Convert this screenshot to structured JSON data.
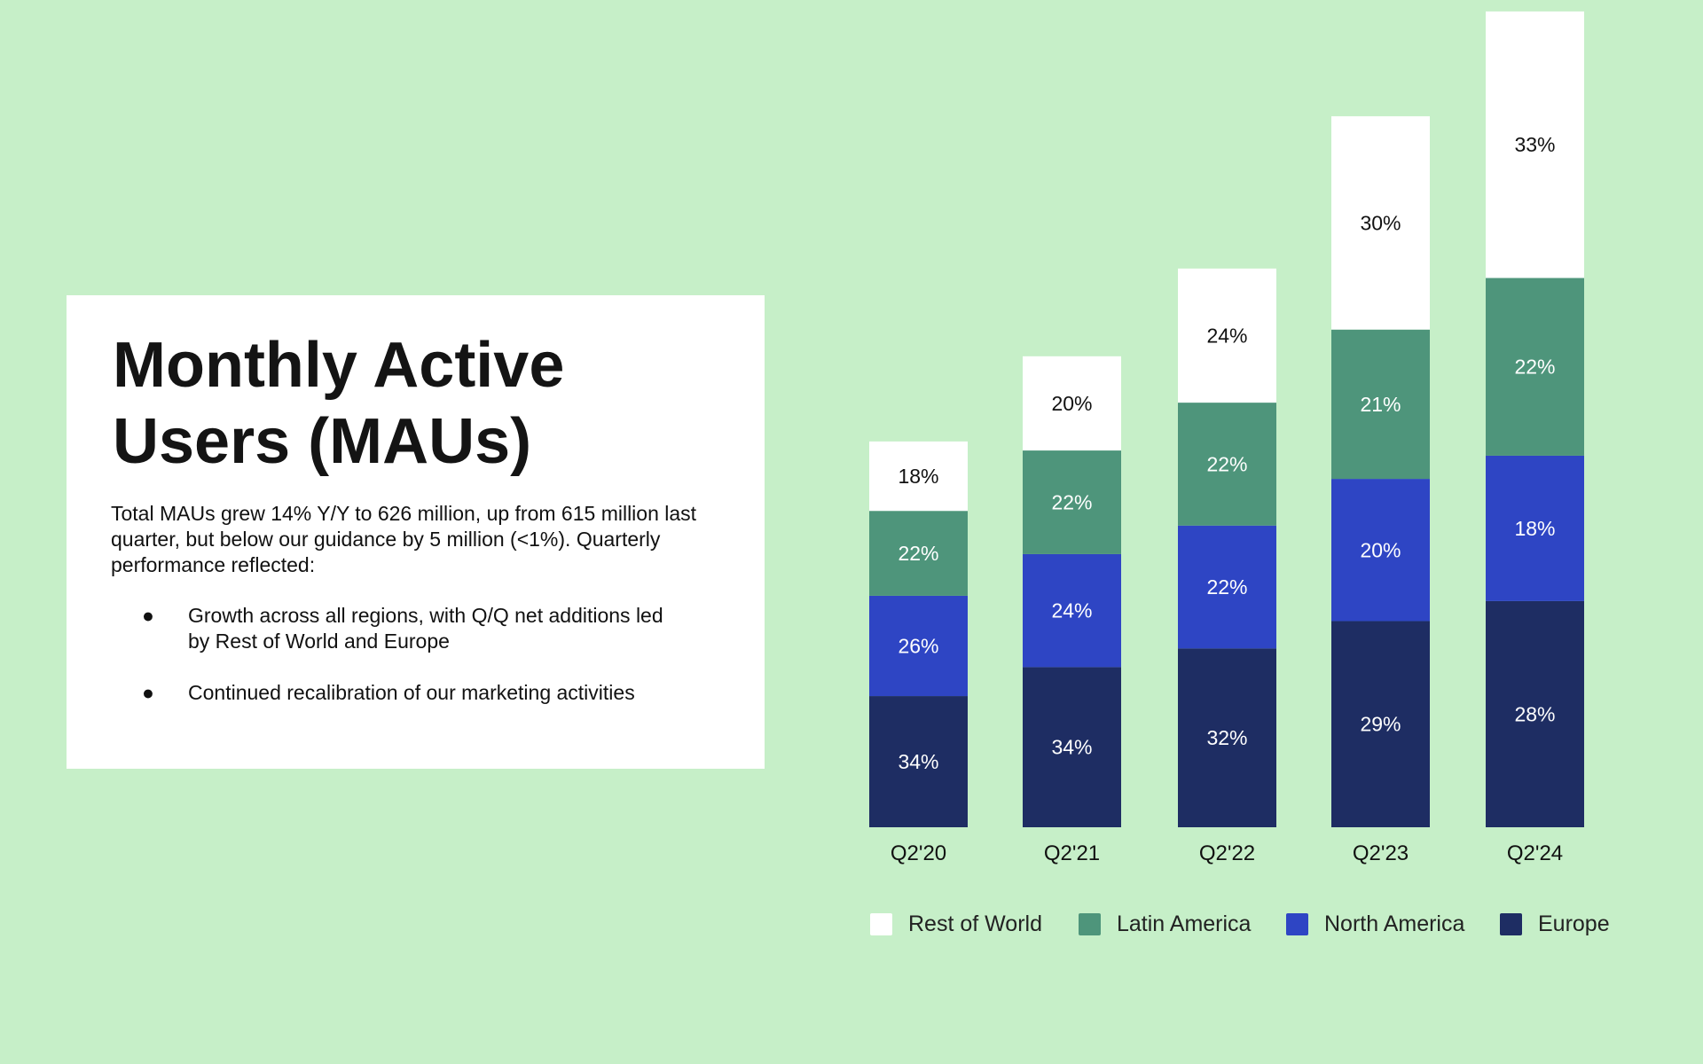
{
  "card": {
    "title_line1": "Monthly Active",
    "title_line2": "Users (MAUs)",
    "body": "Total MAUs grew 14% Y/Y to 626 million, up from 615 million last quarter, but below our guidance by 5 million (<1%). Quarterly performance reflected:",
    "bullets": [
      "Growth across all regions, with Q/Q net additions led by Rest of World and Europe",
      "Continued recalibration of our marketing activities"
    ]
  },
  "chart_data": {
    "type": "bar",
    "stacked": true,
    "categories": [
      "Q2'20",
      "Q2'21",
      "Q2'22",
      "Q2'23",
      "Q2'24"
    ],
    "totals_millions_estimated": [
      299,
      365,
      433,
      551,
      626
    ],
    "series": [
      {
        "name": "Europe",
        "color": "#1e2d63",
        "values": [
          34,
          34,
          32,
          29,
          28
        ]
      },
      {
        "name": "North America",
        "color": "#2e45c4",
        "values": [
          26,
          24,
          22,
          20,
          18
        ]
      },
      {
        "name": "Latin America",
        "color": "#4e957b",
        "values": [
          22,
          22,
          22,
          21,
          22
        ]
      },
      {
        "name": "Rest of World",
        "color": "#ffffff",
        "values": [
          18,
          20,
          24,
          30,
          33
        ]
      }
    ],
    "value_suffix": "%",
    "legend_order": [
      "Rest of World",
      "Latin America",
      "North America",
      "Europe"
    ],
    "legend_position": "bottom",
    "grid": false
  },
  "colors": {
    "background": "#c6efc8"
  }
}
